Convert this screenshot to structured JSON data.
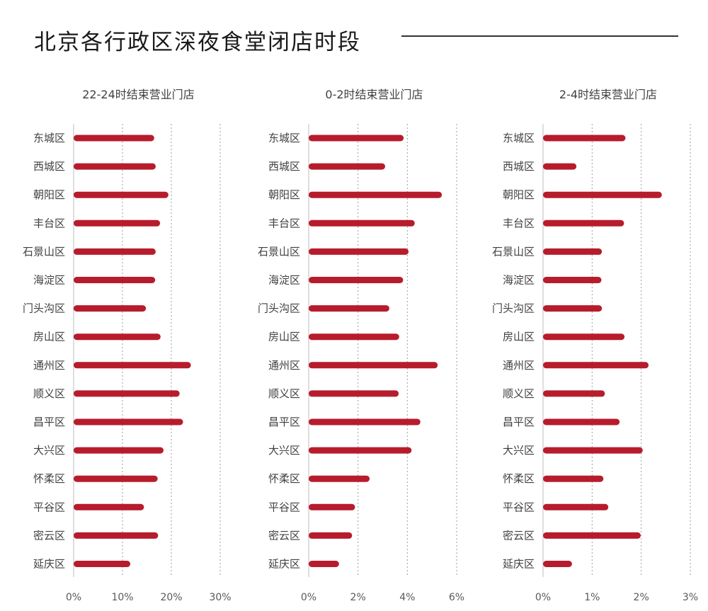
{
  "page": {
    "title": "北京各行政区深夜食堂闭店时段"
  },
  "colors": {
    "bar": "#b71c2c",
    "grid": "#9e9e9e",
    "axis": "#bdbdbd",
    "text": "#404040"
  },
  "chart_data": [
    {
      "type": "bar",
      "orientation": "horizontal",
      "title": "22-24时结束营业门店",
      "categories": [
        "东城区",
        "西城区",
        "朝阳区",
        "丰台区",
        "石景山区",
        "海淀区",
        "门头沟区",
        "房山区",
        "通州区",
        "顺义区",
        "昌平区",
        "大兴区",
        "怀柔区",
        "平谷区",
        "密云区",
        "延庆区"
      ],
      "values": [
        16.5,
        16.8,
        19.4,
        17.7,
        16.8,
        16.7,
        14.8,
        17.8,
        24.0,
        21.7,
        22.4,
        18.4,
        17.2,
        14.4,
        17.3,
        11.6
      ],
      "unit": "%",
      "xlim": [
        0,
        30
      ],
      "xticks": [
        "0%",
        "10%",
        "20%",
        "30%"
      ],
      "tick_values": [
        0,
        10,
        20,
        30
      ],
      "grid": true
    },
    {
      "type": "bar",
      "orientation": "horizontal",
      "title": "0-2时结束营业门店",
      "categories": [
        "东城区",
        "西城区",
        "朝阳区",
        "丰台区",
        "石景山区",
        "海淀区",
        "门头沟区",
        "房山区",
        "通州区",
        "顺义区",
        "昌平区",
        "大兴区",
        "怀柔区",
        "平谷区",
        "密云区",
        "延庆区"
      ],
      "values": [
        3.85,
        3.1,
        5.4,
        4.3,
        4.05,
        3.83,
        3.27,
        3.67,
        5.23,
        3.65,
        4.53,
        4.17,
        2.47,
        1.88,
        1.76,
        1.23
      ],
      "unit": "%",
      "xlim": [
        0,
        6
      ],
      "xticks": [
        "0%",
        "2%",
        "4%",
        "6%"
      ],
      "tick_values": [
        0,
        2,
        4,
        6
      ],
      "grid": true
    },
    {
      "type": "bar",
      "orientation": "horizontal",
      "title": "2-4时结束营业门店",
      "categories": [
        "东城区",
        "西城区",
        "朝阳区",
        "丰台区",
        "石景山区",
        "海淀区",
        "门头沟区",
        "房山区",
        "通州区",
        "顺义区",
        "昌平区",
        "大兴区",
        "怀柔区",
        "平谷区",
        "密云区",
        "延庆区"
      ],
      "values": [
        1.68,
        0.68,
        2.42,
        1.65,
        1.2,
        1.19,
        1.2,
        1.66,
        2.15,
        1.26,
        1.56,
        2.03,
        1.23,
        1.33,
        1.99,
        0.59
      ],
      "unit": "%",
      "xlim": [
        0,
        3
      ],
      "xticks": [
        "0%",
        "1%",
        "2%",
        "3%"
      ],
      "tick_values": [
        0,
        1,
        2,
        3
      ],
      "grid": true
    }
  ]
}
